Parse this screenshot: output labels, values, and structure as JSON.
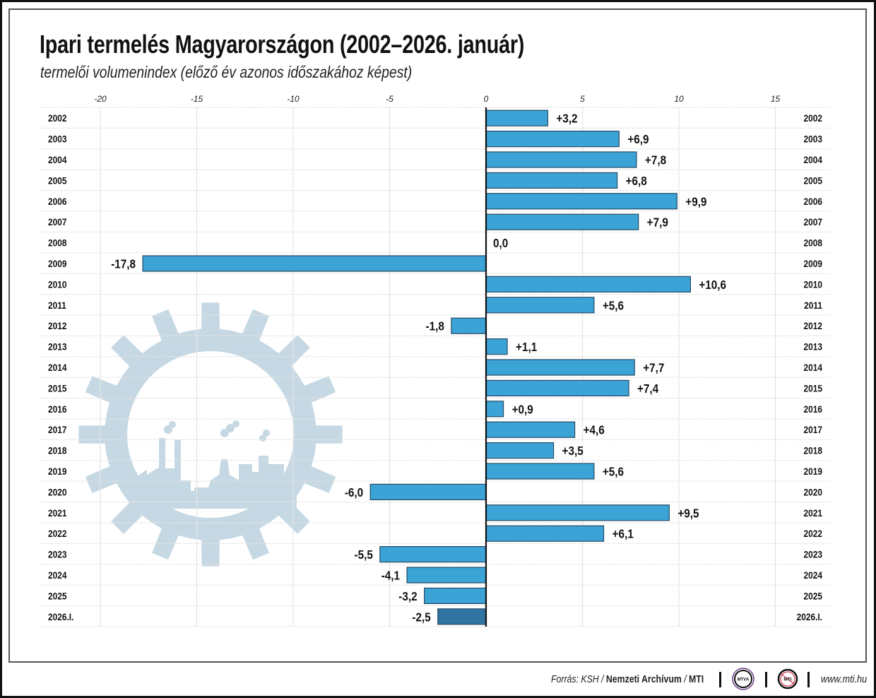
{
  "title": "Ipari termelés Magyarországon (2002–2026. január)",
  "subtitle": "termelői volumenindex (előző év azonos időszakához képest)",
  "colors": {
    "bar": "#3ba3d6",
    "bar_highlight": "#2f74a2",
    "bar_border": "#264a66",
    "gear": "#c6d8e3",
    "grid": "#e4e4e4",
    "axis": "#111111"
  },
  "chart_data": {
    "type": "bar",
    "orientation": "horizontal",
    "title": "Ipari termelés Magyarországon (2002–2026. január)",
    "subtitle": "termelői volumenindex (előző év azonos időszakához képest)",
    "xlabel": "",
    "ylabel": "",
    "xlim": [
      -20,
      17
    ],
    "xticks": [
      -20,
      -15,
      -10,
      -5,
      0,
      5,
      10,
      15
    ],
    "xtick_labels": [
      "-20",
      "-15",
      "-10",
      "-5",
      "0",
      "5",
      "10",
      "15"
    ],
    "grid": true,
    "categories": [
      "2002",
      "2003",
      "2004",
      "2005",
      "2006",
      "2007",
      "2008",
      "2009",
      "2010",
      "2011",
      "2012",
      "2013",
      "2014",
      "2015",
      "2016",
      "2017",
      "2018",
      "2019",
      "2020",
      "2021",
      "2022",
      "2023",
      "2024",
      "2025",
      "2026.I."
    ],
    "values": [
      3.2,
      6.9,
      7.8,
      6.8,
      9.9,
      7.9,
      0.0,
      -17.8,
      10.6,
      5.6,
      -1.8,
      1.1,
      7.7,
      7.4,
      0.9,
      4.6,
      3.5,
      5.6,
      -6.0,
      9.5,
      6.1,
      -5.5,
      -4.1,
      -3.2,
      -2.5
    ],
    "data_labels": [
      "+3,2",
      "+6,9",
      "+7,8",
      "+6,8",
      "+9,9",
      "+7,9",
      "0,0",
      "-17,8",
      "+10,6",
      "+5,6",
      "-1,8",
      "+1,1",
      "+7,7",
      "+7,4",
      "+0,9",
      "+4,6",
      "+3,5",
      "+5,6",
      "-6,0",
      "+9,5",
      "+6,1",
      "-5,5",
      "-4,1",
      "-3,2",
      "-2,5"
    ],
    "highlight_index": 24
  },
  "footer": {
    "source_prefix": "Forrás: KSH / ",
    "source_bold": "Nemzeti Archívum",
    "source_sep": " / ",
    "source_mti": "MTI",
    "logo1": "MTVA",
    "logo2": "MTI",
    "url": "www.mti.hu"
  }
}
